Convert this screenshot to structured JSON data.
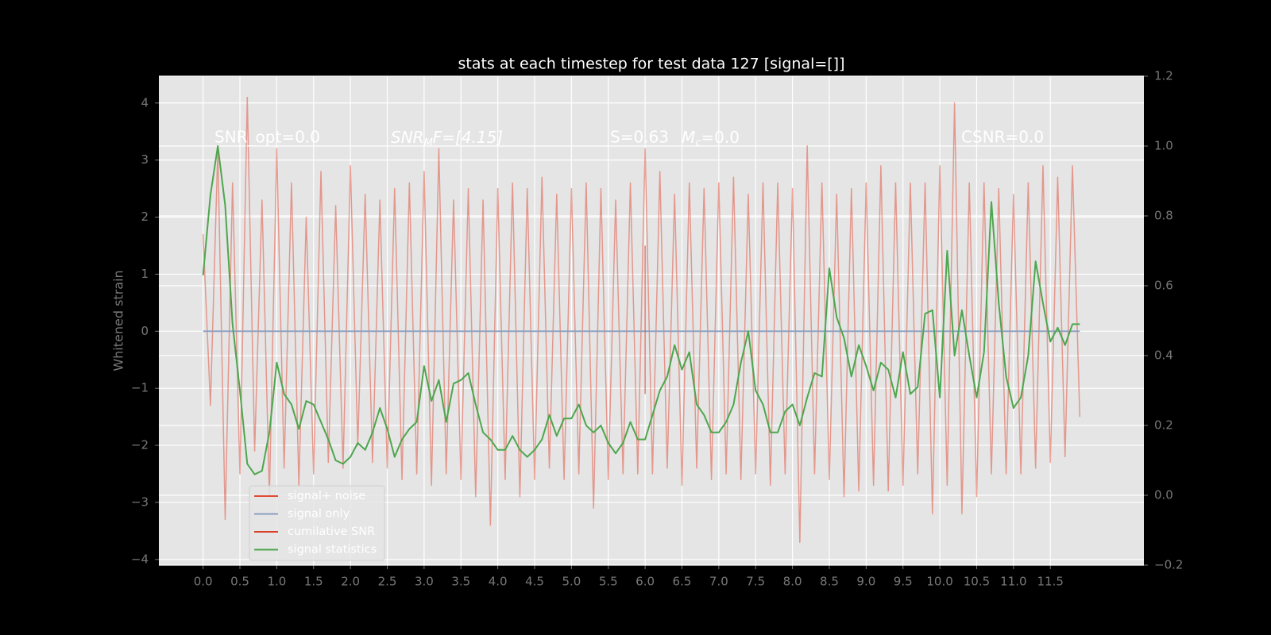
{
  "chart_data": {
    "type": "line",
    "title": "stats at each timestep for test data 127 [signal=[]]",
    "ylabel": "Whitened strain",
    "annotations": [
      "SNR_opt=0.0",
      [
        "SNR",
        "M",
        "F=[4.15]"
      ],
      "S=0.63",
      [
        "M",
        "c",
        "=0.0"
      ],
      "CSNR=0.0"
    ],
    "xlim": [
      -0.6,
      12.77
    ],
    "ylim": [
      -4.1,
      4.47
    ],
    "y2lim": [
      -0.2,
      1.2
    ],
    "grid": true,
    "legend": "lower left",
    "xticks": [
      {
        "value": 0,
        "label": "0.0"
      },
      0.5,
      {
        "value": 1,
        "label": "1.0"
      },
      1.5,
      {
        "value": 2,
        "label": "2.0"
      },
      2.5,
      {
        "value": 3,
        "label": "3.0"
      },
      3.5,
      {
        "value": 4,
        "label": "4.0"
      },
      4.5,
      {
        "value": 5,
        "label": "5.0"
      },
      5.5,
      {
        "value": 6,
        "label": "6.0"
      },
      6.5,
      {
        "value": 7,
        "label": "7.0"
      },
      7.5,
      {
        "value": 8,
        "label": "8.0"
      },
      8.5,
      {
        "value": 9,
        "label": "9.0"
      },
      9.5,
      {
        "value": 10,
        "label": "10.0"
      },
      10.5,
      {
        "value": 11,
        "label": "11.0"
      },
      11.5
    ],
    "yticks": [
      {
        "value": -4,
        "label": "−4"
      },
      {
        "value": -3,
        "label": "−3"
      },
      {
        "value": -2,
        "label": "−2"
      },
      {
        "value": -1,
        "label": "−1"
      },
      0,
      1,
      2,
      3,
      4
    ],
    "y2ticks": [
      {
        "value": -0.2,
        "label": "−0.2"
      },
      {
        "value": 0,
        "label": "0.0"
      },
      0.2,
      0.4,
      0.6,
      0.8,
      {
        "value": 1,
        "label": "1.0"
      },
      1.2
    ],
    "x": [
      0,
      0.1,
      0.2,
      0.3,
      0.4,
      0.5,
      0.6,
      0.7,
      0.8,
      0.9,
      1,
      1.1,
      1.2,
      1.3,
      1.4,
      1.5,
      1.6,
      1.7,
      1.8,
      1.9,
      2,
      2.1,
      2.2,
      2.3,
      2.4,
      2.5,
      2.6,
      2.7,
      2.8,
      2.9,
      3,
      3.1,
      3.2,
      3.3,
      3.4,
      3.5,
      3.6,
      3.7,
      3.8,
      3.9,
      4,
      4.1,
      4.2,
      4.3,
      4.4,
      4.5,
      4.6,
      4.7,
      4.8,
      4.9,
      5,
      5.1,
      5.2,
      5.3,
      5.4,
      5.5,
      5.6,
      5.7,
      5.8,
      5.9,
      6,
      6.1,
      6.2,
      6.3,
      6.4,
      6.5,
      6.6,
      6.7,
      6.8,
      6.9,
      7,
      7.1,
      7.2,
      7.3,
      7.4,
      7.5,
      7.6,
      7.7,
      7.8,
      7.9,
      8,
      8.1,
      8.2,
      8.3,
      8.4,
      8.5,
      8.6,
      8.7,
      8.8,
      8.9,
      9,
      9.1,
      9.2,
      9.3,
      9.4,
      9.5,
      9.6,
      9.7,
      9.8,
      9.9,
      10,
      10.1,
      10.2,
      10.3,
      10.4,
      10.5,
      10.6,
      10.7,
      10.8,
      10.9,
      11,
      11.1,
      11.2,
      11.3,
      11.4,
      11.5,
      11.6,
      11.7,
      11.8,
      11.9
    ],
    "series": [
      {
        "name": "signal+ noise",
        "color": "#e24a33",
        "values": [
          1.7,
          -1.3,
          3.2,
          -3.3,
          2.6,
          -2.5,
          4.1,
          -2.1,
          2.3,
          -2.9,
          3.2,
          -2.4,
          2.6,
          -2.7,
          2.0,
          -2.5,
          2.8,
          -2.3,
          2.2,
          -2.4,
          2.9,
          -2.0,
          2.4,
          -2.3,
          2.3,
          -2.4,
          2.5,
          -2.6,
          2.6,
          -2.5,
          2.8,
          -2.7,
          3.2,
          -2.5,
          2.3,
          -2.6,
          2.5,
          -2.9,
          2.3,
          -3.4,
          2.5,
          -2.6,
          2.6,
          -2.9,
          2.5,
          -2.6,
          2.7,
          -2.4,
          2.4,
          -2.6,
          2.5,
          -2.5,
          2.6,
          -3.1,
          2.5,
          -2.6,
          2.3,
          -2.5,
          2.6,
          -2.5,
          3.2,
          -2.5,
          2.8,
          -2.4,
          2.4,
          -2.7,
          2.6,
          -2.4,
          2.5,
          -2.6,
          2.6,
          -2.5,
          2.7,
          -2.6,
          2.4,
          -2.5,
          2.6,
          -2.7,
          2.6,
          -2.5,
          2.5,
          -3.7,
          3.25,
          -2.5,
          2.6,
          -2.6,
          2.4,
          -2.9,
          2.5,
          -2.8,
          2.6,
          -2.7,
          2.9,
          -2.8,
          2.6,
          -2.7,
          2.6,
          -2.5,
          2.6,
          -3.2,
          2.9,
          -2.7,
          4.0,
          -3.2,
          2.6,
          -2.9,
          2.6,
          -2.5,
          2.5,
          -2.5,
          2.4,
          -2.5,
          2.6,
          -2.4,
          2.9,
          -2.3,
          2.7,
          -2.2,
          2.9,
          -1.5
        ]
      },
      {
        "name": "signal only",
        "color": "#8a9fc0",
        "x": [
          0,
          11.9
        ],
        "values": [
          0,
          0
        ]
      },
      {
        "name": "cumilative SNR",
        "color": "#d9412b",
        "x": [
          6,
          6
        ],
        "values": [
          1.5,
          -1.1
        ]
      },
      {
        "name": "signal statistics",
        "color": "#4ea64e",
        "axis": "y2",
        "values": [
          0.63,
          0.86,
          1.0,
          0.83,
          0.49,
          0.3,
          0.09,
          0.06,
          0.07,
          0.18,
          0.38,
          0.29,
          0.26,
          0.19,
          0.27,
          0.26,
          0.21,
          0.16,
          0.1,
          0.09,
          0.11,
          0.15,
          0.13,
          0.18,
          0.25,
          0.19,
          0.11,
          0.16,
          0.19,
          0.21,
          0.37,
          0.27,
          0.33,
          0.21,
          0.32,
          0.33,
          0.35,
          0.26,
          0.18,
          0.16,
          0.13,
          0.13,
          0.17,
          0.13,
          0.11,
          0.13,
          0.16,
          0.23,
          0.17,
          0.22,
          0.22,
          0.26,
          0.2,
          0.18,
          0.2,
          0.15,
          0.12,
          0.15,
          0.21,
          0.16,
          0.16,
          0.23,
          0.3,
          0.34,
          0.43,
          0.36,
          0.41,
          0.26,
          0.23,
          0.18,
          0.18,
          0.21,
          0.26,
          0.38,
          0.47,
          0.3,
          0.26,
          0.18,
          0.18,
          0.24,
          0.26,
          0.2,
          0.28,
          0.35,
          0.34,
          0.65,
          0.51,
          0.45,
          0.34,
          0.43,
          0.37,
          0.3,
          0.38,
          0.36,
          0.28,
          0.41,
          0.29,
          0.31,
          0.52,
          0.53,
          0.28,
          0.7,
          0.4,
          0.53,
          0.4,
          0.28,
          0.41,
          0.84,
          0.55,
          0.34,
          0.25,
          0.28,
          0.4,
          0.67,
          0.55,
          0.44,
          0.48,
          0.43,
          0.49,
          0.49
        ]
      }
    ]
  }
}
